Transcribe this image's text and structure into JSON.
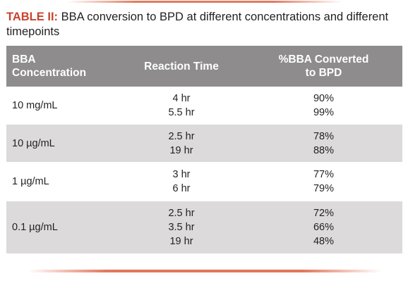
{
  "caption": {
    "label": "TABLE II:",
    "text": " BBA conversion to BPD at different concentrations and different timepoints"
  },
  "table": {
    "headers": {
      "concentration_line1": "BBA",
      "concentration_line2": "Concentration",
      "reaction_time": "Reaction Time",
      "converted_line1": "%BBA Converted",
      "converted_line2": "to BPD"
    },
    "rows": [
      {
        "concentration": "10 mg/mL",
        "times": [
          "4 hr",
          "5.5 hr"
        ],
        "converted": [
          "90%",
          "99%"
        ]
      },
      {
        "concentration": "10 µg/mL",
        "times": [
          "2.5 hr",
          "19 hr"
        ],
        "converted": [
          "78%",
          "88%"
        ]
      },
      {
        "concentration": "1 µg/mL",
        "times": [
          "3 hr",
          "6 hr"
        ],
        "converted": [
          "77%",
          "79%"
        ]
      },
      {
        "concentration": "0.1 µg/mL",
        "times": [
          "2.5 hr",
          "3.5 hr",
          "19 hr"
        ],
        "converted": [
          "72%",
          "66%",
          "48%"
        ]
      }
    ]
  },
  "colors": {
    "caption_label": "#c8432b",
    "header_bg": "#8e8c8c",
    "row_alt_bg": "#dcdada",
    "rule": "#e07a5f"
  }
}
